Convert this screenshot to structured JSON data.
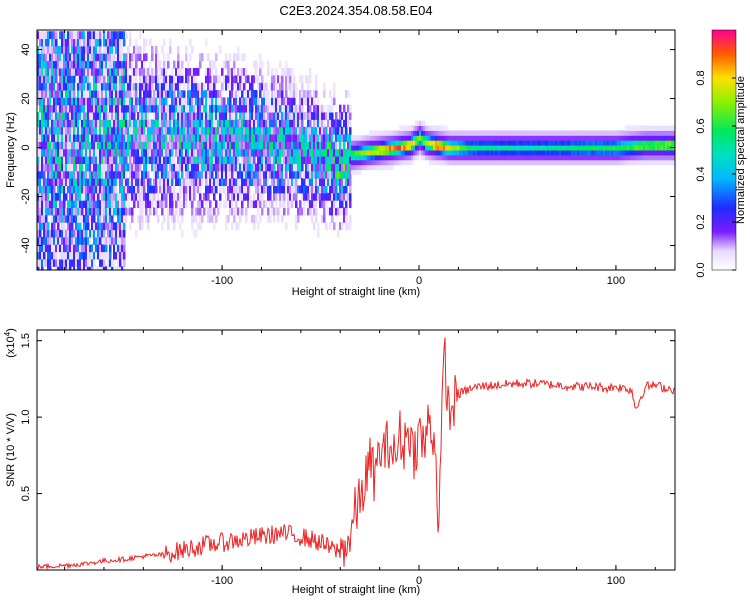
{
  "title": "C2E3.2024.354.08.58.E04",
  "colors": {
    "snr_line": "#ee2222",
    "frame": "#000000",
    "background": "#ffffff"
  },
  "chart_data": [
    {
      "type": "heatmap",
      "xlabel": "Height of straight line (km)",
      "ylabel": "Frequency (Hz)",
      "xlim": [
        -194,
        130
      ],
      "ylim": [
        -50,
        48
      ],
      "x_ticks": [
        -100,
        0,
        100
      ],
      "x_tick_labels": [
        "-100",
        "0",
        "100"
      ],
      "y_ticks": [
        -40,
        -20,
        0,
        20,
        40
      ],
      "y_tick_labels": [
        "-40",
        "-20",
        "0",
        "20",
        "40"
      ],
      "colorbar": {
        "label": "Normalized spectral amplitude",
        "range": [
          0,
          1
        ],
        "ticks": [
          0.0,
          0.2,
          0.4,
          0.6,
          0.8
        ],
        "tick_labels": [
          "0.0",
          "0.2",
          "0.4",
          "0.6",
          "0.8"
        ]
      },
      "center_track": {
        "x": [
          -190,
          -170,
          -150,
          -130,
          -110,
          -90,
          -70,
          -55,
          -45,
          -40,
          -35,
          -28,
          -20,
          -12,
          -5,
          0,
          3,
          8,
          15,
          25,
          40,
          60,
          80,
          100,
          115,
          130
        ],
        "freq": [
          4,
          5,
          6,
          5,
          4,
          3,
          1,
          -2,
          -5,
          -7,
          -3,
          -2,
          -1,
          0,
          1,
          4,
          2,
          1,
          0,
          0,
          0,
          0,
          0,
          0,
          1,
          1
        ],
        "amplitude": [
          0.2,
          0.25,
          0.35,
          0.4,
          0.42,
          0.45,
          0.5,
          0.55,
          0.6,
          0.65,
          0.6,
          0.75,
          0.85,
          0.9,
          0.88,
          0.7,
          0.75,
          0.95,
          0.8,
          0.55,
          0.5,
          0.5,
          0.55,
          0.6,
          0.7,
          0.75
        ]
      }
    },
    {
      "type": "line",
      "xlabel": "Height of straight line (km)",
      "ylabel": "SNR (10 * V/V)",
      "y_multiplier": "(x10",
      "y_multiplier_exp": "4",
      "y_multiplier_close": ")",
      "xlim": [
        -194,
        130
      ],
      "ylim": [
        0,
        1.57
      ],
      "x_ticks": [
        -100,
        0,
        100
      ],
      "x_tick_labels": [
        "-100",
        "0",
        "100"
      ],
      "y_ticks": [
        0.5,
        1.0,
        1.5
      ],
      "y_tick_labels": [
        "0.5",
        "1.0",
        "1.5"
      ],
      "series": [
        {
          "x": [
            -194,
            -180,
            -170,
            -160,
            -150,
            -140,
            -130,
            -120,
            -110,
            -100,
            -90,
            -80,
            -70,
            -60,
            -50,
            -45,
            -40,
            -35,
            -33,
            -30,
            -28,
            -25,
            -22,
            -20,
            -18,
            -15,
            -12,
            -10,
            -8,
            -5,
            -3,
            0,
            3,
            5,
            8,
            10,
            12,
            13,
            15,
            18,
            20,
            25,
            30,
            40,
            50,
            60,
            70,
            80,
            90,
            95,
            100,
            108,
            110,
            115,
            120,
            125,
            130
          ],
          "values": [
            0.02,
            0.03,
            0.04,
            0.06,
            0.07,
            0.09,
            0.1,
            0.13,
            0.16,
            0.18,
            0.2,
            0.22,
            0.24,
            0.22,
            0.18,
            0.14,
            0.12,
            0.2,
            0.35,
            0.45,
            0.55,
            0.7,
            0.6,
            0.8,
            0.75,
            0.85,
            0.7,
            0.9,
            0.8,
            0.95,
            0.75,
            0.9,
            0.8,
            1.0,
            0.85,
            0.3,
            1.1,
            1.45,
            1.0,
            1.1,
            1.15,
            1.18,
            1.2,
            1.21,
            1.22,
            1.22,
            1.21,
            1.2,
            1.2,
            1.19,
            1.2,
            1.18,
            1.05,
            1.2,
            1.21,
            1.19,
            1.18
          ]
        }
      ]
    }
  ]
}
